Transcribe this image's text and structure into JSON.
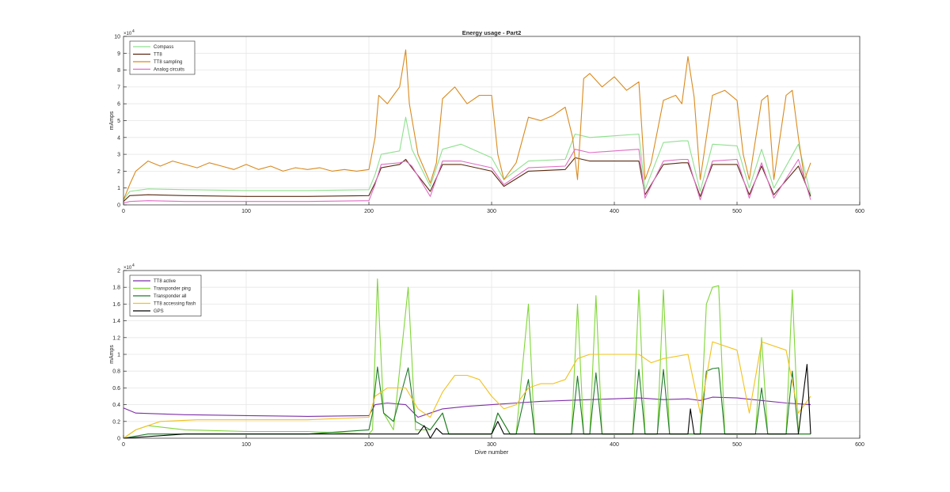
{
  "chart_data": [
    {
      "type": "line",
      "title": "Energy usage - Part2",
      "xlabel": "",
      "ylabel": "mAmps",
      "exponent_label": "×10",
      "exponent_power": "4",
      "xlim": [
        0,
        600
      ],
      "ylim": [
        0,
        10
      ],
      "x_ticks": [
        "0",
        "100",
        "200",
        "300",
        "400",
        "500",
        "600"
      ],
      "y_ticks": [
        "0",
        "1",
        "2",
        "3",
        "4",
        "5",
        "6",
        "7",
        "8",
        "9",
        "10"
      ],
      "grid": true,
      "legend_position": "top-left",
      "series": [
        {
          "name": "Compass",
          "color": "#8fe08f",
          "x": [
            0,
            5,
            20,
            50,
            100,
            150,
            200,
            205,
            210,
            225,
            230,
            235,
            250,
            260,
            275,
            300,
            310,
            330,
            360,
            368,
            380,
            400,
            420,
            425,
            440,
            455,
            460,
            470,
            480,
            500,
            510,
            520,
            530,
            550,
            560
          ],
          "values": [
            0.3,
            0.8,
            0.95,
            0.9,
            0.85,
            0.85,
            0.9,
            1.8,
            3.0,
            3.2,
            5.2,
            3.3,
            1.1,
            3.3,
            3.6,
            2.8,
            1.5,
            2.6,
            2.7,
            4.2,
            4.0,
            4.1,
            4.2,
            0.9,
            3.7,
            3.8,
            3.8,
            0.8,
            3.6,
            3.5,
            1.0,
            3.3,
            1.0,
            3.6,
            0.6
          ]
        },
        {
          "name": "TT8",
          "color": "#5a2a10",
          "x": [
            0,
            5,
            20,
            50,
            100,
            150,
            200,
            205,
            210,
            225,
            230,
            235,
            250,
            260,
            275,
            300,
            310,
            330,
            360,
            368,
            380,
            400,
            420,
            425,
            440,
            455,
            460,
            470,
            480,
            500,
            510,
            520,
            530,
            550,
            560
          ],
          "values": [
            0.2,
            0.55,
            0.6,
            0.55,
            0.5,
            0.5,
            0.55,
            1.3,
            2.2,
            2.4,
            2.7,
            2.2,
            0.8,
            2.4,
            2.4,
            2.0,
            1.1,
            2.0,
            2.1,
            2.8,
            2.6,
            2.6,
            2.6,
            0.6,
            2.4,
            2.5,
            2.5,
            0.5,
            2.4,
            2.4,
            0.6,
            2.3,
            0.6,
            2.3,
            0.5
          ]
        },
        {
          "name": "TT8 sampling",
          "color": "#d98a1e",
          "x": [
            0,
            5,
            10,
            20,
            30,
            40,
            50,
            60,
            70,
            80,
            90,
            100,
            110,
            120,
            130,
            140,
            150,
            160,
            170,
            180,
            190,
            200,
            205,
            208,
            215,
            220,
            225,
            230,
            233,
            240,
            250,
            255,
            260,
            270,
            280,
            290,
            300,
            305,
            310,
            320,
            330,
            340,
            350,
            360,
            366,
            370,
            375,
            380,
            390,
            400,
            410,
            420,
            425,
            430,
            440,
            450,
            455,
            460,
            465,
            470,
            480,
            490,
            500,
            505,
            510,
            520,
            525,
            530,
            540,
            545,
            550,
            555,
            560
          ],
          "values": [
            0.3,
            1.2,
            2.0,
            2.6,
            2.3,
            2.6,
            2.4,
            2.2,
            2.5,
            2.3,
            2.1,
            2.4,
            2.1,
            2.3,
            2.0,
            2.2,
            2.1,
            2.2,
            2.0,
            2.1,
            2.0,
            2.1,
            4.0,
            6.5,
            6.0,
            6.5,
            7.0,
            9.2,
            6.0,
            3.0,
            1.3,
            2.5,
            6.3,
            7.0,
            6.0,
            6.5,
            6.5,
            3.0,
            1.5,
            2.5,
            5.2,
            5.0,
            5.3,
            5.8,
            4.0,
            1.5,
            7.5,
            7.8,
            7.0,
            7.6,
            6.8,
            7.3,
            1.5,
            2.5,
            6.2,
            6.5,
            6.0,
            8.8,
            6.4,
            1.5,
            6.5,
            6.8,
            6.2,
            3.0,
            1.5,
            6.2,
            6.5,
            1.5,
            6.5,
            6.8,
            4.0,
            1.5,
            2.5
          ]
        },
        {
          "name": "Analog circuits",
          "color": "#e06cc4",
          "x": [
            0,
            5,
            20,
            50,
            100,
            150,
            200,
            205,
            210,
            225,
            230,
            235,
            250,
            260,
            275,
            300,
            310,
            330,
            360,
            368,
            380,
            400,
            420,
            425,
            440,
            455,
            460,
            470,
            480,
            500,
            510,
            520,
            530,
            550,
            560
          ],
          "values": [
            0.1,
            0.2,
            0.25,
            0.2,
            0.2,
            0.2,
            0.25,
            1.2,
            2.4,
            2.5,
            2.6,
            2.3,
            0.5,
            2.6,
            2.6,
            2.2,
            1.2,
            2.2,
            2.3,
            3.3,
            3.1,
            3.2,
            3.3,
            0.4,
            2.6,
            2.7,
            2.7,
            0.3,
            2.6,
            2.7,
            0.4,
            2.5,
            0.4,
            2.7,
            0.3
          ]
        }
      ]
    },
    {
      "type": "line",
      "title": "",
      "xlabel": "Dive number",
      "ylabel": "mAmps",
      "exponent_label": "×10",
      "exponent_power": "4",
      "xlim": [
        0,
        600
      ],
      "ylim": [
        0,
        2
      ],
      "x_ticks": [
        "0",
        "100",
        "200",
        "300",
        "400",
        "500",
        "600"
      ],
      "y_ticks": [
        "0",
        "0.2",
        "0.4",
        "0.6",
        "0.8",
        "1",
        "1.2",
        "1.4",
        "1.6",
        "1.8",
        "2"
      ],
      "grid": true,
      "legend_position": "top-left",
      "series": [
        {
          "name": "TT8 active",
          "color": "#7e2fa8",
          "x": [
            0,
            10,
            50,
            100,
            150,
            200,
            205,
            215,
            230,
            240,
            250,
            260,
            280,
            300,
            320,
            340,
            360,
            380,
            400,
            420,
            440,
            460,
            470,
            480,
            500,
            520,
            540,
            560
          ],
          "values": [
            0.36,
            0.3,
            0.28,
            0.27,
            0.26,
            0.27,
            0.4,
            0.42,
            0.4,
            0.25,
            0.3,
            0.35,
            0.38,
            0.4,
            0.42,
            0.44,
            0.45,
            0.46,
            0.47,
            0.48,
            0.46,
            0.47,
            0.45,
            0.49,
            0.48,
            0.45,
            0.42,
            0.4
          ]
        },
        {
          "name": "Transponder ping",
          "color": "#7fd637",
          "x": [
            0,
            10,
            20,
            50,
            100,
            150,
            200,
            203,
            207,
            212,
            220,
            232,
            238,
            250,
            260,
            265,
            300,
            305,
            315,
            320,
            330,
            335,
            365,
            370,
            375,
            380,
            385,
            390,
            415,
            420,
            425,
            435,
            440,
            445,
            470,
            475,
            480,
            485,
            490,
            515,
            520,
            525,
            540,
            545,
            550,
            560
          ],
          "values": [
            0.0,
            0.1,
            0.15,
            0.1,
            0.08,
            0.08,
            0.05,
            0.1,
            1.9,
            0.3,
            0.1,
            1.8,
            0.1,
            0.1,
            0.3,
            0.05,
            0.05,
            0.3,
            0.05,
            0.05,
            1.6,
            0.05,
            0.05,
            1.6,
            0.05,
            0.05,
            1.7,
            0.05,
            0.05,
            1.77,
            0.05,
            0.05,
            1.77,
            0.05,
            0.05,
            1.6,
            1.8,
            1.82,
            0.05,
            0.05,
            1.2,
            0.05,
            0.05,
            1.77,
            0.05,
            0.05
          ]
        },
        {
          "name": "Transponder all",
          "color": "#1f7a2a",
          "x": [
            0,
            20,
            50,
            100,
            150,
            200,
            203,
            207,
            212,
            220,
            232,
            238,
            250,
            260,
            265,
            300,
            305,
            315,
            320,
            330,
            335,
            365,
            370,
            375,
            380,
            385,
            390,
            415,
            420,
            425,
            435,
            440,
            445,
            470,
            475,
            480,
            485,
            490,
            515,
            520,
            525,
            540,
            545,
            550,
            560
          ],
          "values": [
            0.0,
            0.05,
            0.05,
            0.05,
            0.05,
            0.1,
            0.3,
            0.85,
            0.3,
            0.2,
            0.84,
            0.2,
            0.1,
            0.3,
            0.05,
            0.05,
            0.3,
            0.05,
            0.05,
            0.7,
            0.05,
            0.05,
            0.74,
            0.05,
            0.05,
            0.78,
            0.05,
            0.05,
            0.82,
            0.05,
            0.05,
            0.82,
            0.05,
            0.05,
            0.8,
            0.83,
            0.84,
            0.05,
            0.05,
            0.6,
            0.05,
            0.05,
            0.8,
            0.05,
            0.05
          ]
        },
        {
          "name": "TT8 accessing flash",
          "color": "#f2c21b",
          "x": [
            0,
            10,
            30,
            60,
            100,
            150,
            200,
            205,
            215,
            230,
            240,
            250,
            260,
            270,
            280,
            290,
            300,
            310,
            320,
            330,
            340,
            350,
            360,
            370,
            380,
            400,
            420,
            430,
            440,
            460,
            470,
            480,
            500,
            510,
            520,
            540,
            550,
            560
          ],
          "values": [
            0.0,
            0.1,
            0.2,
            0.22,
            0.22,
            0.22,
            0.25,
            0.5,
            0.6,
            0.6,
            0.35,
            0.25,
            0.55,
            0.75,
            0.75,
            0.7,
            0.5,
            0.35,
            0.4,
            0.6,
            0.65,
            0.65,
            0.7,
            0.95,
            1.0,
            1.0,
            1.0,
            0.9,
            0.95,
            1.0,
            0.3,
            1.15,
            1.05,
            0.3,
            1.15,
            1.05,
            0.3,
            0.5
          ]
        },
        {
          "name": "GPS",
          "color": "#000000",
          "x": [
            0,
            50,
            100,
            150,
            200,
            210,
            240,
            245,
            250,
            255,
            260,
            300,
            305,
            310,
            350,
            400,
            450,
            460,
            462,
            465,
            500,
            540,
            550,
            557,
            560
          ],
          "values": [
            0.0,
            0.05,
            0.05,
            0.05,
            0.05,
            0.05,
            0.05,
            0.15,
            0.0,
            0.12,
            0.05,
            0.05,
            0.2,
            0.05,
            0.05,
            0.05,
            0.05,
            0.05,
            0.35,
            0.05,
            0.05,
            0.05,
            0.05,
            0.88,
            0.05
          ]
        }
      ]
    }
  ]
}
